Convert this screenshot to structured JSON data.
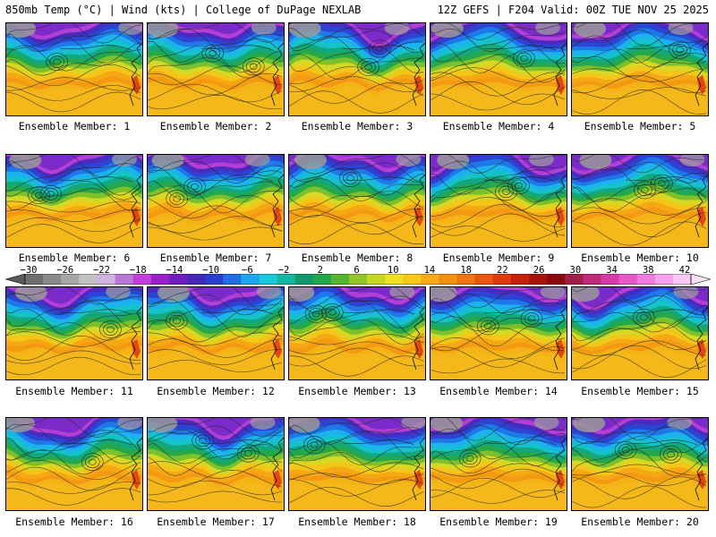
{
  "header": {
    "left": "850mb Temp (°C) | Wind (kts) | College of DuPage NEXLAB",
    "right": "12Z GEFS | F204 Valid: 00Z TUE NOV 25 2025"
  },
  "panels": [
    {
      "label": "Ensemble Member: 1"
    },
    {
      "label": "Ensemble Member: 2"
    },
    {
      "label": "Ensemble Member: 3"
    },
    {
      "label": "Ensemble Member: 4"
    },
    {
      "label": "Ensemble Member: 5"
    },
    {
      "label": "Ensemble Member: 6"
    },
    {
      "label": "Ensemble Member: 7"
    },
    {
      "label": "Ensemble Member: 8"
    },
    {
      "label": "Ensemble Member: 9"
    },
    {
      "label": "Ensemble Member: 10"
    },
    {
      "label": "Ensemble Member: 11"
    },
    {
      "label": "Ensemble Member: 12"
    },
    {
      "label": "Ensemble Member: 13"
    },
    {
      "label": "Ensemble Member: 14"
    },
    {
      "label": "Ensemble Member: 15"
    },
    {
      "label": "Ensemble Member: 16"
    },
    {
      "label": "Ensemble Member: 17"
    },
    {
      "label": "Ensemble Member: 18"
    },
    {
      "label": "Ensemble Member: 19"
    },
    {
      "label": "Ensemble Member: 20"
    }
  ],
  "colorbar": {
    "ticks": [
      "−30",
      "−26",
      "−22",
      "−18",
      "−14",
      "−10",
      "−6",
      "−2",
      "2",
      "6",
      "10",
      "14",
      "18",
      "22",
      "26",
      "30",
      "34",
      "38",
      "42"
    ],
    "colors": [
      "#6e6e6e",
      "#8a8a8a",
      "#a6a6a6",
      "#c2c2c2",
      "#cfb3dd",
      "#b879d6",
      "#c23fd8",
      "#9a22c9",
      "#6f1fbf",
      "#4529b8",
      "#2a3fcf",
      "#1f6fe6",
      "#1ea6ee",
      "#19c9dc",
      "#12b8a0",
      "#129a6e",
      "#23a64a",
      "#58b52e",
      "#93c62a",
      "#c8d624",
      "#f0e020",
      "#f8c81a",
      "#f6ac16",
      "#f29112",
      "#ef7510",
      "#e9560e",
      "#df3a0c",
      "#c8200a",
      "#a81208",
      "#8a0a10",
      "#a0204a",
      "#c02a7a",
      "#d83aa6",
      "#e858c6",
      "#f07ae0",
      "#f6a0ee",
      "#fbc8f6"
    ]
  }
}
